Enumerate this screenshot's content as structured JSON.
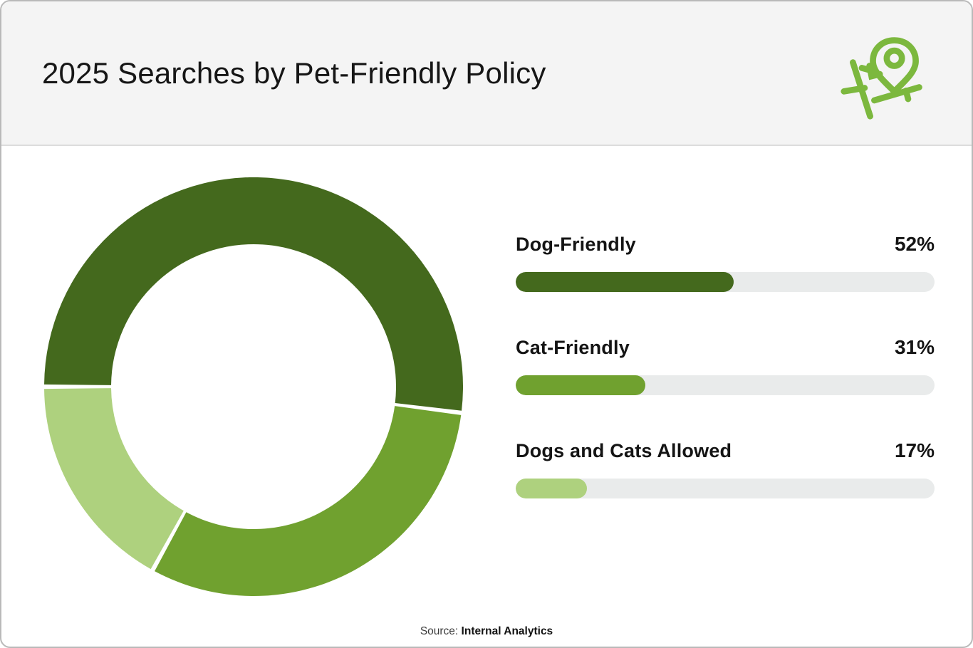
{
  "header": {
    "title": "2025 Searches by Pet-Friendly Policy",
    "icon": "map-location-pin-icon"
  },
  "chart_data": {
    "type": "pie",
    "subtype": "donut",
    "title": "2025 Searches by Pet-Friendly Policy",
    "categories": [
      "Dog-Friendly",
      "Cat-Friendly",
      "Dogs and Cats Allowed"
    ],
    "values": [
      52,
      31,
      17
    ],
    "unit": "%",
    "colors": [
      "#44691d",
      "#70a12f",
      "#aed17e"
    ],
    "start": "9 o'clock position, clockwise",
    "donut_hole_ratio": 0.68,
    "segment_gap_deg": 1.2,
    "legend_position": "right",
    "legend": [
      {
        "label": "Dog-Friendly",
        "value": "52%",
        "percent": 52,
        "color": "#44691d"
      },
      {
        "label": "Cat-Friendly",
        "value": "31%",
        "percent": 31,
        "color": "#70a12f"
      },
      {
        "label": "Dogs and Cats Allowed",
        "value": "17%",
        "percent": 17,
        "color": "#aed17e"
      }
    ]
  },
  "bars": {
    "track_color": "#e9ebeb"
  },
  "source": {
    "prefix": "Source:",
    "name": "Internal Analytics"
  },
  "colors": {
    "header_bg": "#f4f4f4",
    "card_border": "#b9b9b9",
    "icon_green": "#7cb83e",
    "text": "#141414"
  }
}
